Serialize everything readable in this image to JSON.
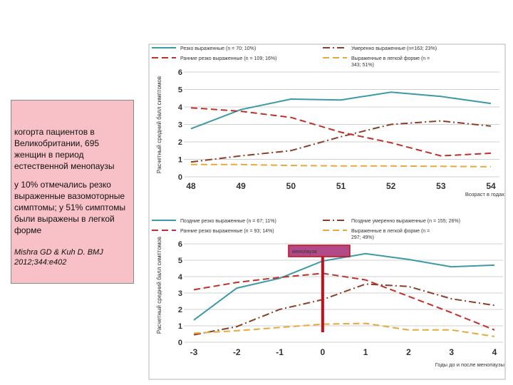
{
  "note": {
    "p1": "когорта пациентов в Великобритании, 695 женщин в период естественной менопаузы",
    "p2": "у 10% отмечались резко выраженные вазомоторные симптомы; у 51% симптомы были выражены в легкой форме",
    "p3": "Mishra GD & Kuh D. BMJ 2012;344:e402"
  },
  "colors": {
    "teal": "#3c9aa8",
    "red": "#c0302a",
    "brown": "#8a3f26",
    "yellow": "#e9a93a",
    "marker": "#c0101a",
    "note_bg": "#f7c1c7"
  },
  "chart_data": [
    {
      "type": "line",
      "x": [
        48,
        49,
        50,
        51,
        52,
        53,
        54
      ],
      "ylim": [
        0,
        6
      ],
      "yticks": [
        "0",
        "1",
        "2",
        "3",
        "4",
        "5",
        "6"
      ],
      "xticks": [
        "48",
        "49",
        "50",
        "51",
        "52",
        "53",
        "54"
      ],
      "ylabel": "Расчетный средний балл симптомов",
      "xlabel": "Возраст в годах",
      "legend": [
        "Резко выраженные (n = 70; 10%)",
        "Умеренно выраженные (n=163; 23%)",
        "Ранние резко выраженные (n = 109; 16%)",
        "Выраженные в легкой форме (n = 343; 51%)"
      ],
      "series": [
        {
          "name": "Резко выраженные (n = 70; 10%)",
          "color": "#3c9aa8",
          "dash": "solid",
          "values": [
            2.75,
            3.85,
            4.45,
            4.4,
            4.85,
            4.6,
            4.2
          ]
        },
        {
          "name": "Умеренно выраженные (n=163; 23%)",
          "color": "#8a3f26",
          "dash": "dashdot",
          "values": [
            0.85,
            1.2,
            1.5,
            2.3,
            3.0,
            3.2,
            2.9
          ]
        },
        {
          "name": "Ранние резко выраженные (n = 109; 16%)",
          "color": "#c0302a",
          "dash": "dash",
          "values": [
            3.95,
            3.75,
            3.4,
            2.55,
            1.95,
            1.2,
            1.35
          ]
        },
        {
          "name": "Выраженные в легкой форме (n = 343; 51%)",
          "color": "#e9a93a",
          "dash": "dash",
          "values": [
            0.7,
            0.7,
            0.65,
            0.62,
            0.62,
            0.6,
            0.58
          ]
        }
      ]
    },
    {
      "type": "line",
      "x": [
        -3,
        -2,
        -1,
        0,
        1,
        2,
        3,
        4
      ],
      "ylim": [
        0,
        6
      ],
      "yticks": [
        "0",
        "1",
        "2",
        "3",
        "4",
        "5",
        "6"
      ],
      "xticks": [
        "-3",
        "-2",
        "-1",
        "0",
        "1",
        "2",
        "3",
        "4"
      ],
      "ylabel": "Расчетный средний балл симптомов",
      "xlabel": "Годы до и после менопаузы",
      "annotation": "менопауза",
      "legend": [
        "Поздние резко выраженные (n = 67; 11%)",
        "Поздние умеренно выраженные (n = 155; 26%)",
        "Ранние резко выраженные (n = 93; 14%)",
        "Выраженные в легкой форме (n = 297; 49%)"
      ],
      "series": [
        {
          "name": "Поздние резко выраженные (n = 67; 11%)",
          "color": "#3c9aa8",
          "dash": "solid",
          "values": [
            1.35,
            3.3,
            3.9,
            4.95,
            5.4,
            5.05,
            4.6,
            4.7
          ]
        },
        {
          "name": "Поздние умеренно выраженные (n = 155; 26%)",
          "color": "#8a3f26",
          "dash": "dashdot",
          "values": [
            0.45,
            0.95,
            2.0,
            2.6,
            3.55,
            3.4,
            2.65,
            2.25
          ]
        },
        {
          "name": "Ранние резко выраженные (n = 93; 14%)",
          "color": "#c0302a",
          "dash": "dash",
          "values": [
            3.2,
            3.65,
            3.95,
            4.2,
            3.8,
            2.8,
            1.8,
            0.75
          ]
        },
        {
          "name": "Выраженные в легкой форме (n = 297; 49%)",
          "color": "#e9a93a",
          "dash": "dash",
          "values": [
            0.55,
            0.7,
            0.9,
            1.1,
            1.15,
            0.75,
            0.75,
            0.35
          ]
        }
      ]
    }
  ]
}
